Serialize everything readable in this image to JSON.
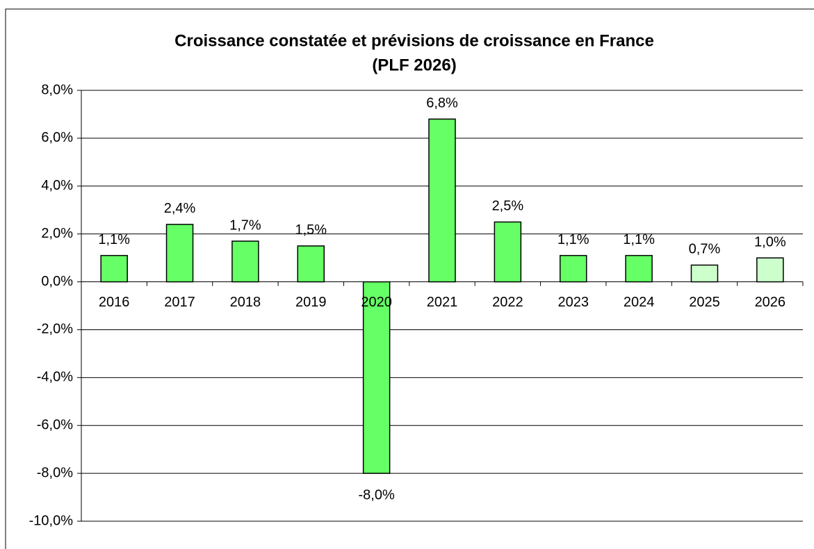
{
  "chart_data": {
    "type": "bar",
    "title": "Croissance constatée et prévisions de croissance en France",
    "subtitle": "(PLF 2026)",
    "categories": [
      "2016",
      "2017",
      "2018",
      "2019",
      "2020",
      "2021",
      "2022",
      "2023",
      "2024",
      "2025",
      "2026"
    ],
    "values": [
      1.1,
      2.4,
      1.7,
      1.5,
      -8.0,
      6.8,
      2.5,
      1.1,
      1.1,
      0.7,
      1.0
    ],
    "value_labels": [
      "1,1%",
      "2,4%",
      "1,7%",
      "1,5%",
      "-8,0%",
      "6,8%",
      "2,5%",
      "1,1%",
      "1,1%",
      "0,7%",
      "1,0%"
    ],
    "colors": [
      "#66ff66",
      "#66ff66",
      "#66ff66",
      "#66ff66",
      "#66ff66",
      "#66ff66",
      "#66ff66",
      "#66ff66",
      "#66ff66",
      "#ccffcc",
      "#ccffcc"
    ],
    "ylim": [
      -10,
      8
    ],
    "yticks": [
      {
        "value": -10,
        "label": "-10,0%"
      },
      {
        "value": -8,
        "label": "-8,0%"
      },
      {
        "value": -6,
        "label": "-6,0%"
      },
      {
        "value": -4,
        "label": "-4,0%"
      },
      {
        "value": -2,
        "label": "-2,0%"
      },
      {
        "value": 0,
        "label": "0,0%"
      },
      {
        "value": 2,
        "label": "2,0%"
      },
      {
        "value": 4,
        "label": "4,0%"
      },
      {
        "value": 6,
        "label": "6,0%"
      },
      {
        "value": 8,
        "label": "8,0%"
      }
    ],
    "grid": true
  }
}
